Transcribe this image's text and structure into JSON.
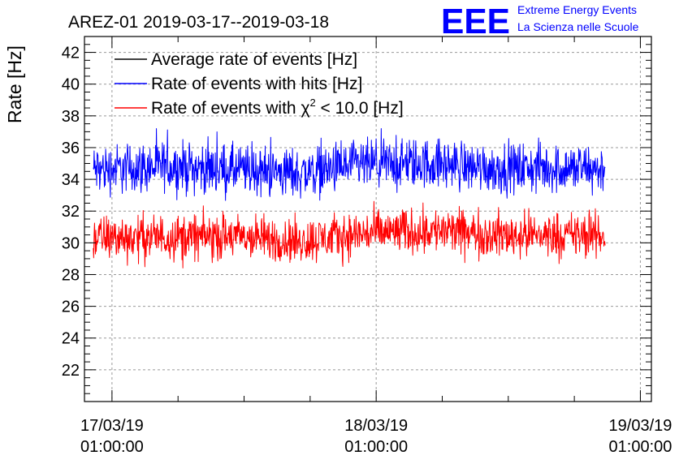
{
  "title": "AREZ-01 2019-03-17--2019-03-18",
  "logo": {
    "letters": "EEE",
    "line1": "Extreme Energy Events",
    "line2": "La Scienza nelle Scuole",
    "color": "#0000ff"
  },
  "colors": {
    "average": "#000000",
    "hits": "#0000ff",
    "chi2": "#ff0000",
    "grid": "#999999"
  },
  "chart_data": {
    "type": "line",
    "title": "AREZ-01 2019-03-17--2019-03-18",
    "xlabel": "",
    "ylabel": "Rate [Hz]",
    "ylim": [
      20,
      43
    ],
    "y_ticks": [
      22,
      24,
      26,
      28,
      30,
      32,
      34,
      36,
      38,
      40,
      42
    ],
    "x_tick_labels": [
      {
        "date": "17/03/19",
        "time": "01:00:00"
      },
      {
        "date": "18/03/19",
        "time": "01:00:00"
      },
      {
        "date": "19/03/19",
        "time": "01:00:00"
      }
    ],
    "x_unit": "hours since 17/03/19 00:00",
    "xlim": [
      -1.5,
      50.0
    ],
    "grid": true,
    "legend_position": "top-left",
    "legend": {
      "average_label": "Average rate of events [Hz]",
      "hits_label": "Rate of events with hits [Hz]",
      "chi2_prefix": "Rate of events with ",
      "chi2_symbol": "χ",
      "chi2_exp": "2",
      "chi2_suffix": " < 10.0 [Hz]"
    },
    "series": [
      {
        "name": "Rate of events with hits [Hz]",
        "color": "#0000ff",
        "x_range": [
          -0.7,
          45.8
        ],
        "trend": [
          [
            -0.7,
            34.6
          ],
          [
            6,
            34.8
          ],
          [
            12,
            34.6
          ],
          [
            18,
            34.4
          ],
          [
            24,
            34.9
          ],
          [
            30,
            35.0
          ],
          [
            36,
            34.7
          ],
          [
            42,
            34.7
          ],
          [
            45.8,
            34.6
          ]
        ],
        "noise_amplitude": 1.1,
        "observed_min": 32.3,
        "observed_max": 37.2
      },
      {
        "name": "Rate of events with χ2 < 10.0 [Hz]",
        "color": "#ff0000",
        "x_range": [
          -0.7,
          45.8
        ],
        "trend": [
          [
            -0.7,
            30.3
          ],
          [
            6,
            30.4
          ],
          [
            12,
            30.4
          ],
          [
            18,
            30.1
          ],
          [
            24,
            30.6
          ],
          [
            30,
            30.8
          ],
          [
            36,
            30.5
          ],
          [
            42,
            30.5
          ],
          [
            45.8,
            30.4
          ]
        ],
        "noise_amplitude": 1.0,
        "observed_min": 27.8,
        "observed_max": 32.7
      }
    ]
  }
}
